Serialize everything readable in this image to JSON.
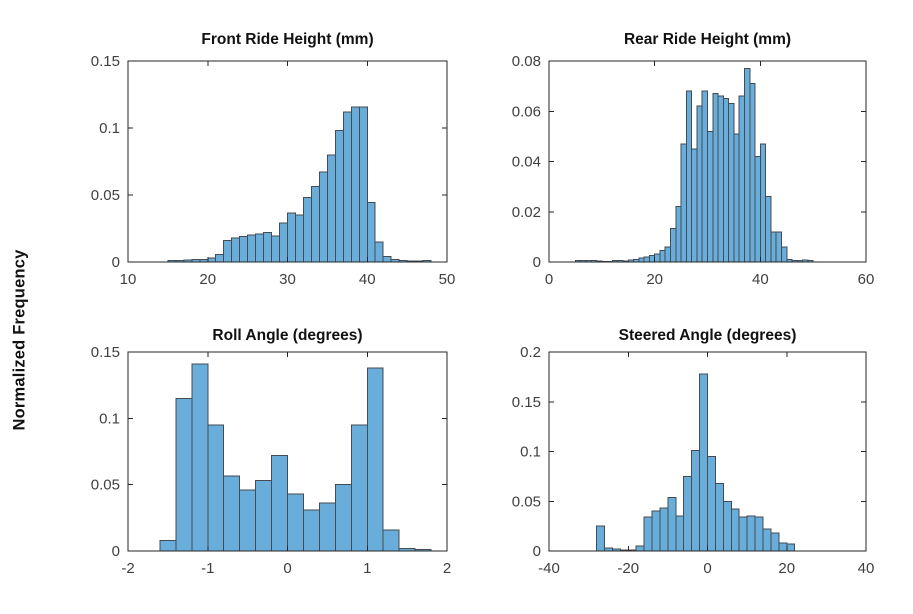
{
  "figure": {
    "ylabel": "Normalized Frequency",
    "background": "#ffffff"
  },
  "style": {
    "bar_fill": "#69ADDB",
    "bar_edge": "#454B52",
    "axis_color": "#262626",
    "tick_label_color": "#404040",
    "title_color": "#111111"
  },
  "chart_data": [
    {
      "id": "front-ride-height",
      "type": "bar",
      "subtype": "histogram",
      "title": "Front Ride Height (mm)",
      "bin_start": 15,
      "bin_width": 1,
      "values": [
        0.001,
        0.001,
        0.0015,
        0.002,
        0.002,
        0.003,
        0.0055,
        0.016,
        0.018,
        0.019,
        0.02,
        0.021,
        0.022,
        0.0195,
        0.029,
        0.0365,
        0.035,
        0.048,
        0.0565,
        0.067,
        0.08,
        0.098,
        0.112,
        0.1155,
        0.1155,
        0.0445,
        0.015,
        0.004,
        0.002,
        0.001,
        0.0008,
        0.0008,
        0.001
      ],
      "xlim": [
        10,
        50
      ],
      "ylim": [
        0,
        0.15
      ],
      "xticks": {
        "values": [
          10,
          20,
          30,
          40,
          50
        ],
        "labels": [
          "10",
          "20",
          "30",
          "40",
          "50"
        ]
      },
      "yticks": {
        "values": [
          0,
          0.05,
          0.1,
          0.15
        ],
        "labels": [
          "0",
          "0.05",
          "0.1",
          "0.15"
        ]
      },
      "grid": false,
      "legend": null
    },
    {
      "id": "rear-ride-height",
      "type": "bar",
      "subtype": "histogram",
      "title": "Rear Ride Height (mm)",
      "bin_start": 5,
      "bin_width": 1,
      "values": [
        0.0005,
        0.0005,
        0.0005,
        0.0005,
        0.0004,
        0.0001,
        0.0001,
        0.0005,
        0.0005,
        0.0004,
        0.0008,
        0.001,
        0.0015,
        0.002,
        0.0026,
        0.0032,
        0.0045,
        0.006,
        0.0134,
        0.022,
        0.047,
        0.068,
        0.045,
        0.062,
        0.068,
        0.052,
        0.067,
        0.066,
        0.065,
        0.063,
        0.051,
        0.066,
        0.077,
        0.071,
        0.042,
        0.047,
        0.026,
        0.012,
        0.012,
        0.006,
        0.001,
        0.0005,
        0.0005,
        0.0008,
        0.0005
      ],
      "xlim": [
        0,
        60
      ],
      "ylim": [
        0,
        0.08
      ],
      "xticks": {
        "values": [
          0,
          20,
          40,
          60
        ],
        "labels": [
          "0",
          "20",
          "40",
          "60"
        ]
      },
      "yticks": {
        "values": [
          0,
          0.02,
          0.04,
          0.06,
          0.08
        ],
        "labels": [
          "0",
          "0.02",
          "0.04",
          "0.06",
          "0.08"
        ]
      },
      "grid": false,
      "legend": null
    },
    {
      "id": "roll-angle",
      "type": "bar",
      "subtype": "histogram",
      "title": "Roll Angle (degrees)",
      "bin_start": -1.6,
      "bin_width": 0.2,
      "values": [
        0.008,
        0.115,
        0.141,
        0.095,
        0.0565,
        0.046,
        0.053,
        0.072,
        0.043,
        0.031,
        0.036,
        0.05,
        0.095,
        0.138,
        0.016,
        0.002,
        0.001
      ],
      "xlim": [
        -2,
        2
      ],
      "ylim": [
        0,
        0.15
      ],
      "xticks": {
        "values": [
          -2,
          -1,
          0,
          1,
          2
        ],
        "labels": [
          "-2",
          "-1",
          "0",
          "1",
          "2"
        ]
      },
      "yticks": {
        "values": [
          0,
          0.05,
          0.1,
          0.15
        ],
        "labels": [
          "0",
          "0.05",
          "0.1",
          "0.15"
        ]
      },
      "grid": false,
      "legend": null
    },
    {
      "id": "steered-angle",
      "type": "bar",
      "subtype": "histogram",
      "title": "Steered Angle (degrees)",
      "bin_start": -28,
      "bin_width": 2,
      "values": [
        0.025,
        0.003,
        0.002,
        0.001,
        0.001,
        0.005,
        0.034,
        0.04,
        0.043,
        0.054,
        0.035,
        0.075,
        0.101,
        0.178,
        0.095,
        0.068,
        0.05,
        0.042,
        0.034,
        0.035,
        0.034,
        0.022,
        0.018,
        0.008,
        0.007
      ],
      "xlim": [
        -40,
        40
      ],
      "ylim": [
        0,
        0.2
      ],
      "xticks": {
        "values": [
          -40,
          -20,
          0,
          20,
          40
        ],
        "labels": [
          "-40",
          "-20",
          "0",
          "20",
          "40"
        ]
      },
      "yticks": {
        "values": [
          0,
          0.05,
          0.1,
          0.15,
          0.2
        ],
        "labels": [
          "0",
          "0.05",
          "0.1",
          "0.15",
          "0.2"
        ]
      },
      "grid": false,
      "legend": null
    }
  ]
}
